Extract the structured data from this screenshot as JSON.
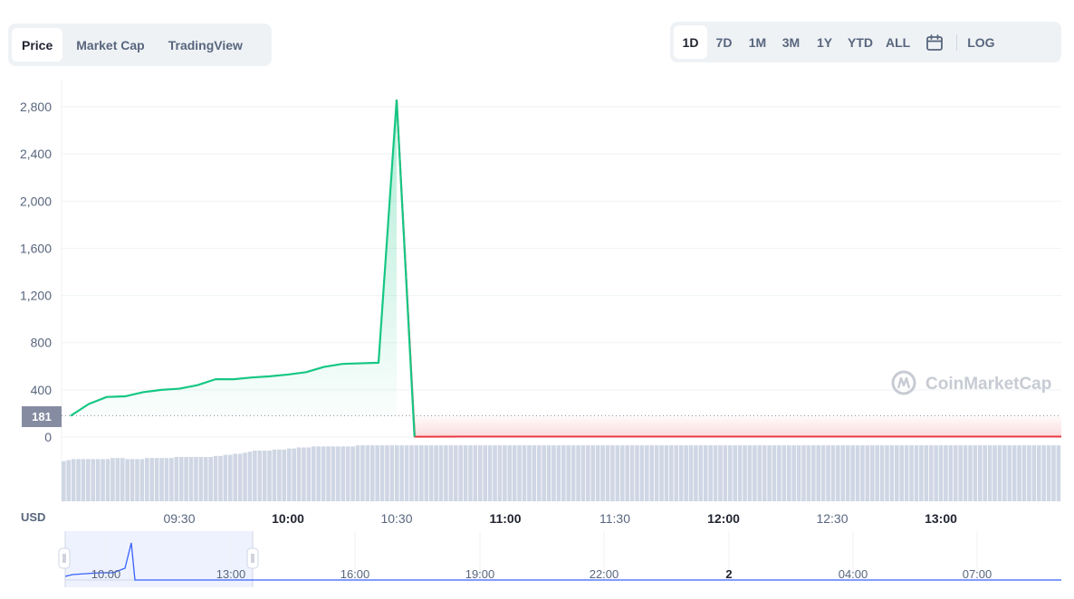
{
  "tabs": [
    {
      "label": "Price",
      "active": true
    },
    {
      "label": "Market Cap",
      "active": false
    },
    {
      "label": "TradingView",
      "active": false
    }
  ],
  "ranges": [
    {
      "label": "1D",
      "active": true
    },
    {
      "label": "7D",
      "active": false
    },
    {
      "label": "1M",
      "active": false
    },
    {
      "label": "3M",
      "active": false
    },
    {
      "label": "1Y",
      "active": false
    },
    {
      "label": "YTD",
      "active": false
    },
    {
      "label": "ALL",
      "active": false
    }
  ],
  "log_label": "LOG",
  "calendar_icon": "calendar-icon",
  "watermark": "CoinMarketCap",
  "currency_label": "USD",
  "current_price_label": "181",
  "colors": {
    "up": "#16c784",
    "down": "#ea3943",
    "volume": "#cfd6e4",
    "navigator": "#3861fb",
    "price_tag": "#858ca2"
  },
  "chart_data": {
    "type": "line",
    "title": "",
    "xlabel": "",
    "ylabel": "",
    "ylim": [
      0,
      2800
    ],
    "y_ticks": [
      "0",
      "400",
      "800",
      "1,200",
      "1,600",
      "2,000",
      "2,400",
      "2,800"
    ],
    "x_ticks": [
      {
        "label": "09:30",
        "bold": false
      },
      {
        "label": "10:00",
        "bold": true
      },
      {
        "label": "10:30",
        "bold": false
      },
      {
        "label": "11:00",
        "bold": true
      },
      {
        "label": "11:30",
        "bold": false
      },
      {
        "label": "12:00",
        "bold": true
      },
      {
        "label": "12:30",
        "bold": false
      },
      {
        "label": "13:00",
        "bold": true
      }
    ],
    "reference_price": 181,
    "series": [
      {
        "x": [
          "09:10",
          "09:15",
          "09:20",
          "09:25",
          "09:30",
          "09:35",
          "09:40",
          "09:45",
          "09:50",
          "09:55",
          "10:00",
          "10:05",
          "10:10",
          "10:15",
          "10:20",
          "10:25",
          "10:35",
          "10:40"
        ],
        "values": [
          180,
          280,
          340,
          345,
          380,
          400,
          410,
          440,
          490,
          490,
          505,
          515,
          530,
          550,
          595,
          620,
          630,
          2860
        ]
      },
      {
        "x": [
          "10:40",
          "10:45",
          "10:50",
          "11:00",
          "12:00",
          "13:00",
          "13:33"
        ],
        "values": [
          2860,
          3,
          3,
          4,
          4,
          4,
          4
        ]
      }
    ],
    "volume": [
      38,
      39,
      40,
      40,
      40,
      40,
      40,
      40,
      40,
      40,
      41,
      41,
      41,
      40,
      40,
      40,
      40,
      41,
      41,
      41,
      41,
      41,
      41,
      42,
      42,
      42,
      42,
      42,
      42,
      42,
      42,
      43,
      43,
      44,
      44,
      45,
      45,
      46,
      47,
      48,
      48,
      48,
      48,
      49,
      49,
      49,
      50,
      50,
      51,
      51,
      51,
      52,
      52,
      52,
      52,
      52,
      52,
      52,
      52,
      52,
      53,
      53,
      53,
      53,
      53,
      53,
      53,
      53,
      53,
      53,
      53,
      53,
      53,
      53,
      53,
      53,
      53,
      53,
      53,
      53,
      53,
      53,
      53,
      53,
      53,
      53,
      53,
      53,
      53,
      53,
      53,
      53,
      53,
      53,
      53,
      53,
      53,
      53,
      53,
      53,
      53,
      53,
      53,
      53,
      53,
      53,
      53,
      53,
      53,
      53,
      53,
      53,
      53,
      53,
      53,
      53,
      53,
      53,
      53,
      53,
      53,
      53,
      53,
      53,
      53,
      53,
      53,
      53,
      53,
      53,
      53,
      53,
      53,
      53,
      53,
      53,
      53,
      53,
      53,
      53,
      53,
      53,
      53,
      53,
      53,
      53,
      53,
      53,
      53,
      53,
      53,
      53,
      53,
      53,
      53,
      53,
      53,
      53,
      53,
      53,
      53,
      53,
      53,
      53,
      53,
      53,
      53,
      53,
      53,
      53,
      53,
      53,
      53,
      53,
      53,
      53,
      53,
      53,
      53,
      53,
      53,
      53,
      53,
      53,
      53,
      53,
      53,
      53,
      53,
      53,
      53,
      53,
      53,
      53,
      53,
      53,
      53,
      53,
      53,
      53,
      53,
      53,
      53,
      53
    ],
    "navigator_ticks": [
      {
        "label": "10:00",
        "bold": false
      },
      {
        "label": "13:00",
        "bold": false
      },
      {
        "label": "16:00",
        "bold": false
      },
      {
        "label": "19:00",
        "bold": false
      },
      {
        "label": "22:00",
        "bold": false
      },
      {
        "label": "2",
        "bold": true
      },
      {
        "label": "04:00",
        "bold": false
      },
      {
        "label": "07:00",
        "bold": false
      }
    ]
  }
}
